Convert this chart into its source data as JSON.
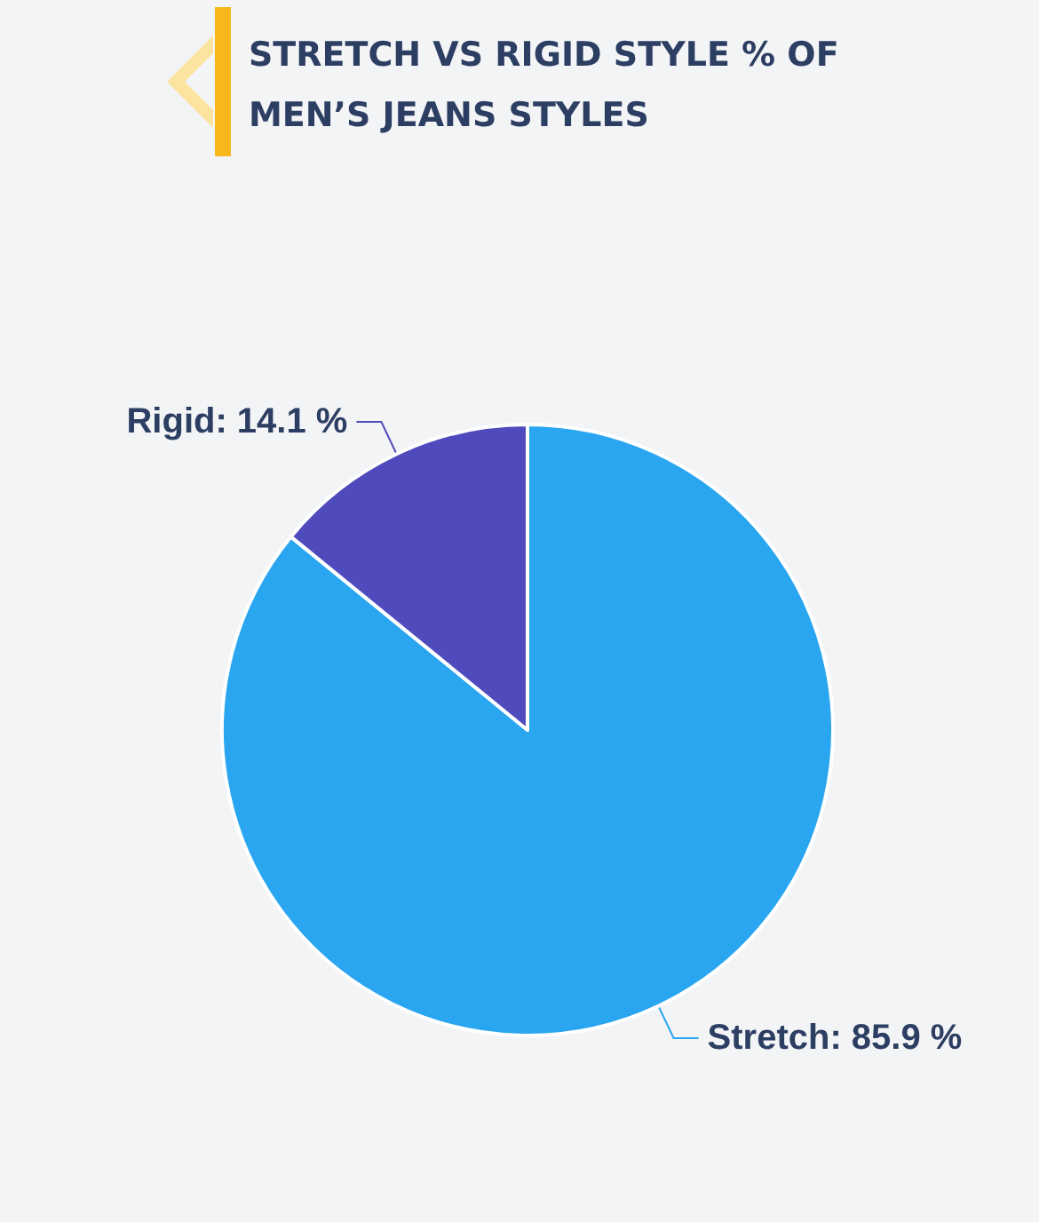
{
  "chart_data": {
    "type": "pie",
    "title": "STRETCH VS RIGID STYLE % OF MEN’S JEANS STYLES",
    "categories": [
      "Stretch",
      "Rigid"
    ],
    "values": [
      85.9,
      14.1
    ],
    "colors": [
      "#2aa6f0",
      "#4f4bbd"
    ],
    "value_labels": [
      ": 85.9 %",
      ": 14.1 %"
    ],
    "legend": false
  }
}
